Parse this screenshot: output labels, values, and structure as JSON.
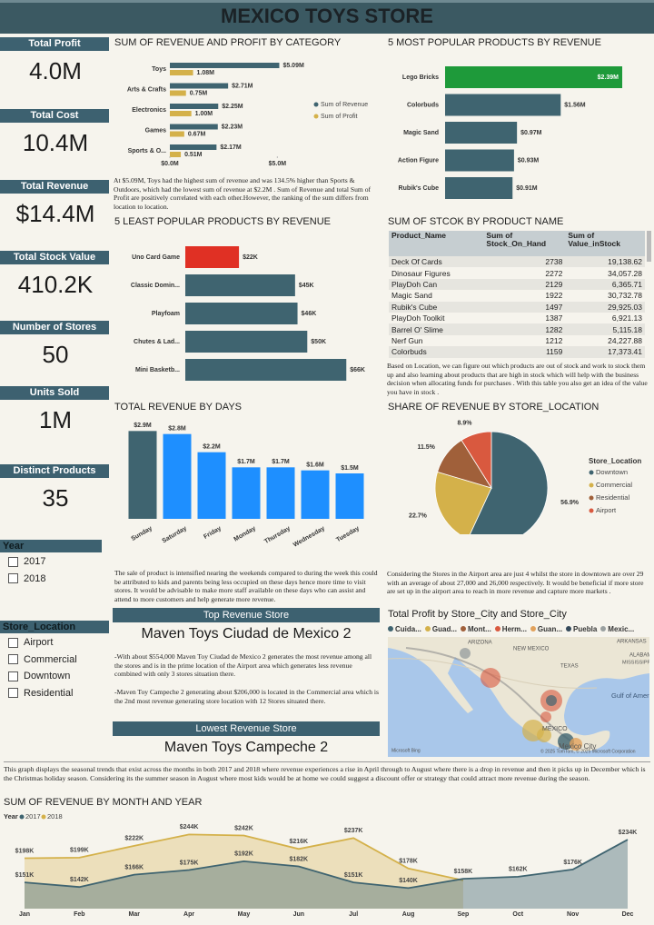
{
  "header": {
    "title": "MEXICO TOYS STORE"
  },
  "kpis": [
    {
      "label": "Total Profit",
      "value": "4.0M"
    },
    {
      "label": "Total Cost",
      "value": "10.4M"
    },
    {
      "label": "Total Revenue",
      "value": "$14.4M"
    },
    {
      "label": "Total Stock Value",
      "value": "410.2K"
    },
    {
      "label": "Number of Stores",
      "value": "50"
    },
    {
      "label": "Units Sold",
      "value": "1M"
    },
    {
      "label": "Distinct Products",
      "value": "35"
    }
  ],
  "filters": [
    {
      "title": "Year",
      "options": [
        "2017",
        "2018"
      ]
    },
    {
      "title": "Store_Location",
      "options": [
        "Airport",
        "Commercial",
        "Downtown",
        "Residential"
      ]
    }
  ],
  "notes": {
    "category": "At $5.09M, Toys had the highest sum of revenue and was 134.5% higher than Sports & Outdoors, which had the lowest sum of revenue at $2.2M . Sum of Revenue and total Sum of Profit are positively correlated with each other.However, the ranking of the sum differs from location to location.",
    "table": "Based on Location, we can figure out which products are out of stock and work to stock them up and also learning about products that are high in stock which will help with the business decision when allocating funds for purchases . With this table you also get an idea of the value you have in stock .",
    "days": "The sale of product is intensified nearing the weekends compared to during the week this could be attributed to kids and parents being less occupied on these days hence more time to visit stores. It would be advisable to make more staff available on these days who can assist  and attend to more customers and help generate more revenue.",
    "location": "Considering the Stores in the Airport area are just 4 whilst the store in downtown are over 29 with an average of about  27,000 and 26,000 respectively. It would be beneficial if more store are set up in the airport area to reach in more revenue and capture more markets .",
    "month": "This graph displays the seasonal trends that exist across the months in both 2017 and 2018 where revenue experiences a rise in April through to August where there is a drop in revenue and then it picks up in December which is the Christmas holiday season. Considering its the summer season in August where most kids would be at home we could suggest a discount offer or strategy that could attract more revenue during the season."
  },
  "top_store": {
    "title": "Top Revenue Store",
    "name": "Maven Toys Ciudad de Mexico 2",
    "details": [
      "-With about $554,000 Maven Toy Ciudad de Mexico 2 generates the most revenue among all the stores and is in the prime location of the Airport area which generates less revenue combined with only 3 stores situation there.",
      "-Maven Toy Campeche 2 generating about $206,000 is located in the Commercial area which is the 2nd most revenue generating store location with 12 Stores situated there."
    ],
    "lowest_title": "Lowest Revenue Store",
    "lowest_name": "Maven Toys Campeche 2"
  },
  "table": {
    "title": "SUM OF STCOK BY PRODUCT NAME",
    "columns": [
      "Product_Name",
      "Sum of Stock_On_Hand",
      "Sum of Value_inStock"
    ],
    "rows": [
      [
        "Deck Of Cards",
        "2738",
        "19,138.62"
      ],
      [
        "Dinosaur Figures",
        "2272",
        "34,057.28"
      ],
      [
        "PlayDoh Can",
        "2129",
        "6,365.71"
      ],
      [
        "Magic Sand",
        "1922",
        "30,732.78"
      ],
      [
        "Rubik's Cube",
        "1497",
        "29,925.03"
      ],
      [
        "PlayDoh Toolkit",
        "1387",
        "6,921.13"
      ],
      [
        "Barrel O' Slime",
        "1282",
        "5,115.18"
      ],
      [
        "Nerf Gun",
        "1212",
        "24,227.88"
      ],
      [
        "Colorbuds",
        "1159",
        "17,373.41"
      ]
    ]
  },
  "map": {
    "title": "Total Profit by Store_City and Store_City",
    "legend": [
      {
        "name": "Cuida...",
        "color": "#3f6470"
      },
      {
        "name": "Guad...",
        "color": "#d4b14a"
      },
      {
        "name": "Mont...",
        "color": "#a0603a"
      },
      {
        "name": "Herm...",
        "color": "#d9593f"
      },
      {
        "name": "Guan...",
        "color": "#e2a25c"
      },
      {
        "name": "Puebla",
        "color": "#34495a"
      },
      {
        "name": "Mexic...",
        "color": "#9aa0a0"
      }
    ],
    "labels": [
      "ARIZONA",
      "NEW MEXICO",
      "ARKANSAS",
      "TEXAS",
      "ALABAMA",
      "MISSISSIPPI",
      "Gulf of America",
      "MÉXICO",
      "Mexico City",
      "© 2025 TomTom, © 2025 Microsoft Corporation",
      "Microsoft Bing"
    ]
  },
  "chart_data": [
    {
      "type": "bar",
      "orientation": "horizontal",
      "title": "SUM OF REVENUE AND PROFIT BY CATEGORY",
      "categories": [
        "Toys",
        "Arts & Crafts",
        "Electronics",
        "Games",
        "Sports & O..."
      ],
      "series": [
        {
          "name": "Sum of Revenue",
          "color": "#3f6470",
          "values": [
            5.09,
            2.71,
            2.25,
            2.23,
            2.17
          ],
          "value_labels": [
            "$5.09M",
            "$2.71M",
            "$2.25M",
            "$2.23M",
            "$2.17M"
          ]
        },
        {
          "name": "Sum of Profit",
          "color": "#d4b14a",
          "values": [
            1.08,
            0.75,
            1.0,
            0.67,
            0.51
          ],
          "value_labels": [
            "1.08M",
            "0.75M",
            "1.00M",
            "0.67M",
            "0.51M"
          ]
        }
      ],
      "xlim": [
        0,
        6
      ],
      "xticks": [
        {
          "value": 0,
          "label": "$0.0M"
        },
        {
          "value": 5,
          "label": "$5.0M"
        }
      ],
      "legend": "right"
    },
    {
      "type": "bar",
      "orientation": "horizontal",
      "title": "5 MOST POPULAR PRODUCTS BY REVENUE",
      "categories": [
        "Lego Bricks",
        "Colorbuds",
        "Magic Sand",
        "Action Figure",
        "Rubik's Cube"
      ],
      "values": [
        2.39,
        1.56,
        0.97,
        0.93,
        0.91
      ],
      "value_labels": [
        "$2.39M",
        "$1.56M",
        "$0.97M",
        "$0.93M",
        "$0.91M"
      ],
      "colors": [
        "#1e9a3a",
        "#3f6470",
        "#3f6470",
        "#3f6470",
        "#3f6470"
      ],
      "xlim": [
        0,
        2.5
      ]
    },
    {
      "type": "bar",
      "orientation": "horizontal",
      "title": "5 LEAST POPULAR PRODUCTS BY REVENUE",
      "categories": [
        "Uno Card Game",
        "Classic Domin...",
        "Playfoam",
        "Chutes & Lad...",
        "Mini Basketb..."
      ],
      "values": [
        22,
        45,
        46,
        50,
        66
      ],
      "value_labels": [
        "$22K",
        "$45K",
        "$46K",
        "$50K",
        "$66K"
      ],
      "colors": [
        "#e03024",
        "#3f6470",
        "#3f6470",
        "#3f6470",
        "#3f6470"
      ],
      "xlim": [
        0,
        70
      ]
    },
    {
      "type": "bar",
      "orientation": "vertical",
      "title": "TOTAL REVENUE BY DAYS",
      "categories": [
        "Sunday",
        "Saturday",
        "Friday",
        "Monday",
        "Thursday",
        "Wednesday",
        "Tuesday"
      ],
      "values": [
        2.9,
        2.8,
        2.2,
        1.7,
        1.7,
        1.6,
        1.5
      ],
      "value_labels": [
        "$2.9M",
        "$2.8M",
        "$2.2M",
        "$1.7M",
        "$1.7M",
        "$1.6M",
        "$1.5M"
      ],
      "colors": [
        "#3f6470",
        "#1e8fff",
        "#1e8fff",
        "#1e8fff",
        "#1e8fff",
        "#1e8fff",
        "#1e8fff"
      ],
      "ylim": [
        0,
        3
      ]
    },
    {
      "type": "pie",
      "title": "SHARE OF REVENUE BY STORE_LOCATION",
      "legend_title": "Store_Location",
      "categories": [
        "Downtown",
        "Commercial",
        "Residential",
        "Airport"
      ],
      "values": [
        56.9,
        22.7,
        11.5,
        8.9
      ],
      "value_labels": [
        "56.9%",
        "22.7%",
        "11.5%",
        "8.9%"
      ],
      "colors": [
        "#3f6470",
        "#d4b14a",
        "#a0603a",
        "#d9593f"
      ],
      "legend": "right"
    },
    {
      "type": "area",
      "title": "SUM OF REVENUE BY MONTH AND YEAR",
      "legend_title": "Year",
      "categories": [
        "Jan",
        "Feb",
        "Mar",
        "Apr",
        "May",
        "Jun",
        "Jul",
        "Aug",
        "Sep",
        "Oct",
        "Nov",
        "Dec"
      ],
      "series": [
        {
          "name": "2018",
          "color": "#d4b14a",
          "values": [
            198,
            199,
            222,
            244,
            242,
            216,
            237,
            178,
            155,
            null,
            null,
            null
          ],
          "value_labels": [
            "$198K",
            "$199K",
            "$222K",
            "$244K",
            "$242K",
            "$216K",
            "$237K",
            "$178K",
            null,
            null,
            null,
            null
          ]
        },
        {
          "name": "2017",
          "color": "#3f6470",
          "values": [
            151,
            142,
            166,
            175,
            192,
            182,
            151,
            140,
            158,
            162,
            176,
            234
          ],
          "value_labels": [
            "$151K",
            "$142K",
            "$166K",
            "$175K",
            "$192K",
            "$182K",
            "$151K",
            "$140K",
            "$158K",
            "$162K",
            "$176K",
            "$234K"
          ]
        }
      ],
      "ylim": [
        100,
        250
      ],
      "legend": "top-left"
    }
  ]
}
